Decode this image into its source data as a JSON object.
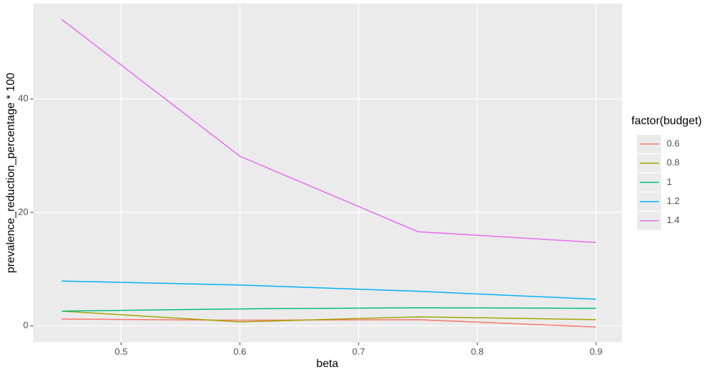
{
  "chart_data": {
    "type": "line",
    "x_label": "beta",
    "y_label": "prevalence_reduction_percentage * 100",
    "x": [
      0.45,
      0.6,
      0.75,
      0.9
    ],
    "legend_title": "factor(budget)",
    "legend_position": "right",
    "series": [
      {
        "name": "0.6",
        "color": "#F8766D",
        "values": [
          1.2,
          1.0,
          1.1,
          -0.2
        ]
      },
      {
        "name": "0.8",
        "color": "#A3A500",
        "values": [
          2.6,
          0.7,
          1.6,
          1.1
        ]
      },
      {
        "name": "1",
        "color": "#00BF7D",
        "values": [
          2.6,
          3.0,
          3.2,
          3.1
        ]
      },
      {
        "name": "1.2",
        "color": "#00B0F6",
        "values": [
          7.9,
          7.2,
          6.1,
          4.7
        ]
      },
      {
        "name": "1.4",
        "color": "#E76BF3",
        "values": [
          54.0,
          29.9,
          16.6,
          14.7
        ]
      }
    ],
    "xlim": [
      0.426,
      0.922
    ],
    "xticks": [
      0.5,
      0.6,
      0.7,
      0.8,
      0.9
    ],
    "ylim": [
      -2.9,
      56.8
    ],
    "yticks": [
      0,
      20,
      40
    ],
    "grid": true
  }
}
